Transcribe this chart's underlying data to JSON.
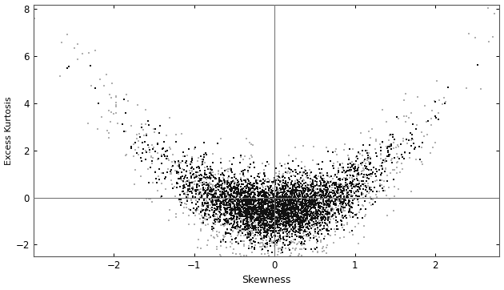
{
  "title": "",
  "xlabel": "Skewness",
  "ylabel": "Excess Kurtosis",
  "xlim": [
    -3.0,
    2.8
  ],
  "ylim": [
    -2.5,
    8.2
  ],
  "xticks": [
    -2,
    -1,
    0,
    1,
    2
  ],
  "yticks": [
    -2,
    0,
    2,
    4,
    6,
    8
  ],
  "hline_y": 0.0,
  "vline_x": 0.0,
  "seed_grey": 999,
  "seed_black": 42,
  "grey_color": "#b0b0b0",
  "black_color": "#111111",
  "marker_size": 3.5,
  "background_color": "#ffffff"
}
